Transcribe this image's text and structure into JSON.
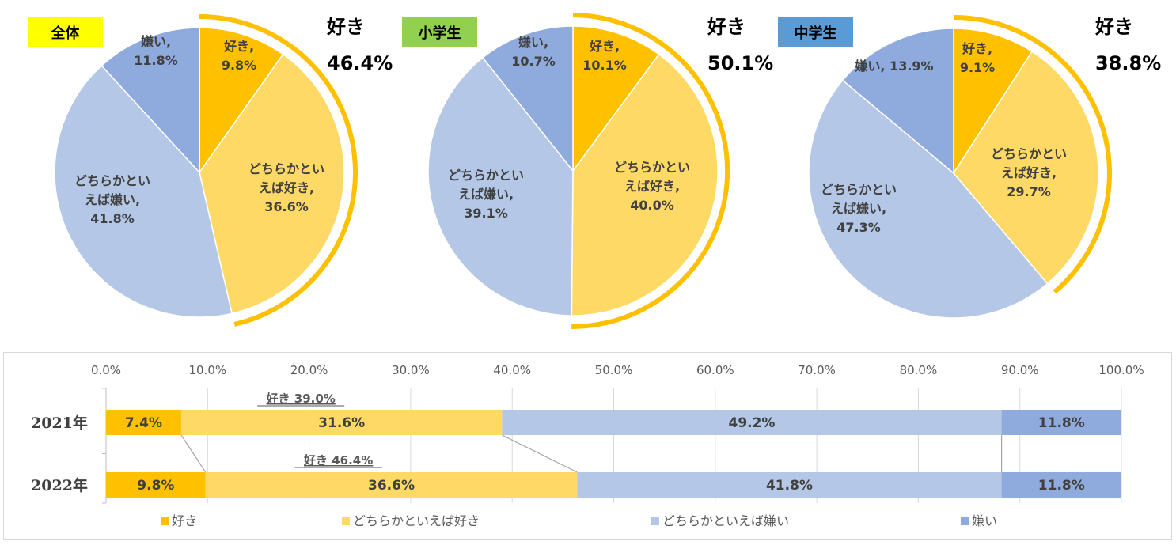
{
  "colors": {
    "like": "#FFC000",
    "somewhat_like": "#FFD966",
    "somewhat_dislike": "#B4C7E7",
    "dislike": "#8FAADC",
    "total_tag": "#FFFF00",
    "elementary_tag": "#92D050",
    "junior_high_tag": "#5B9BD5"
  },
  "chart_data": [
    {
      "type": "pie",
      "tag": "全体",
      "highlight": {
        "label": "好き",
        "value": "46.4%"
      },
      "slices": [
        {
          "key": "like",
          "label_lines": [
            "好き,",
            "9.8%"
          ],
          "value": 9.8
        },
        {
          "key": "somewhat_like",
          "label_lines": [
            "どちらかとい",
            "えば好き,",
            "36.6%"
          ],
          "value": 36.6
        },
        {
          "key": "somewhat_dislike",
          "label_lines": [
            "どちらかとい",
            "えば嫌い,",
            "41.8%"
          ],
          "value": 41.8
        },
        {
          "key": "dislike",
          "label_lines": [
            "嫌い,",
            "11.8%"
          ],
          "value": 11.8
        }
      ]
    },
    {
      "type": "pie",
      "tag": "小学生",
      "highlight": {
        "label": "好き",
        "value": "50.1%"
      },
      "slices": [
        {
          "key": "like",
          "label_lines": [
            "好き,",
            "10.1%"
          ],
          "value": 10.1
        },
        {
          "key": "somewhat_like",
          "label_lines": [
            "どちらかとい",
            "えば好き,",
            "40.0%"
          ],
          "value": 40.0
        },
        {
          "key": "somewhat_dislike",
          "label_lines": [
            "どちらかとい",
            "えば嫌い,",
            "39.1%"
          ],
          "value": 39.1
        },
        {
          "key": "dislike",
          "label_lines": [
            "嫌い,",
            "10.7%"
          ],
          "value": 10.7
        }
      ]
    },
    {
      "type": "pie",
      "tag": "中学生",
      "highlight": {
        "label": "好き",
        "value": "38.8%"
      },
      "slices": [
        {
          "key": "like",
          "label_lines": [
            "好き,",
            "9.1%"
          ],
          "value": 9.1
        },
        {
          "key": "somewhat_like",
          "label_lines": [
            "どちらかとい",
            "えば好き,",
            "29.7%"
          ],
          "value": 29.7
        },
        {
          "key": "somewhat_dislike",
          "label_lines": [
            "どちらかとい",
            "えば嫌い,",
            "47.3%"
          ],
          "value": 47.3
        },
        {
          "key": "dislike",
          "label_lines": [
            "嫌い, 13.9%"
          ],
          "value": 13.9
        }
      ]
    },
    {
      "type": "bar",
      "orientation": "horizontal",
      "stacked": true,
      "xlim": [
        0,
        100
      ],
      "x_ticks": [
        "0.0%",
        "10.0%",
        "20.0%",
        "30.0%",
        "40.0%",
        "50.0%",
        "60.0%",
        "70.0%",
        "80.0%",
        "90.0%",
        "100.0%"
      ],
      "categories": [
        "2021年",
        "2022年"
      ],
      "series": [
        {
          "key": "like",
          "name": "好き",
          "values": [
            7.4,
            9.8
          ],
          "labels": [
            "7.4%",
            "9.8%"
          ]
        },
        {
          "key": "somewhat_like",
          "name": "どちらかといえば好き",
          "values": [
            31.6,
            36.6
          ],
          "labels": [
            "31.6%",
            "36.6%"
          ]
        },
        {
          "key": "somewhat_dislike",
          "name": "どちらかといえば嫌い",
          "values": [
            49.2,
            41.8
          ],
          "labels": [
            "49.2%",
            "41.8%"
          ]
        },
        {
          "key": "dislike",
          "name": "嫌い",
          "values": [
            11.8,
            11.8
          ],
          "labels": [
            "11.8%",
            "11.8%"
          ]
        }
      ],
      "annotations": [
        "好き 39.0%",
        "好き 46.4%"
      ],
      "legend": "bottom"
    }
  ]
}
